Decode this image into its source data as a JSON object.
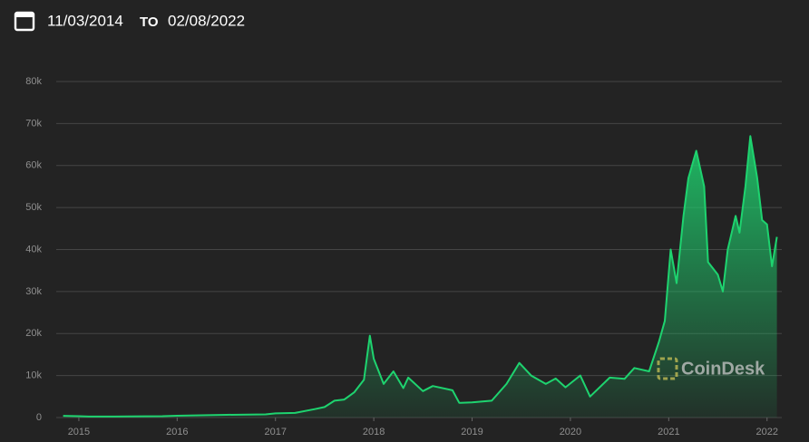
{
  "header": {
    "start_date": "11/03/2014",
    "to": "TO",
    "end_date": "02/08/2022"
  },
  "watermark": "CoinDesk",
  "chart_data": {
    "type": "area",
    "x": [
      2014.84,
      2015.0,
      2015.1,
      2015.5,
      2015.85,
      2016.0,
      2016.5,
      2016.9,
      2017.0,
      2017.2,
      2017.4,
      2017.5,
      2017.6,
      2017.7,
      2017.8,
      2017.9,
      2017.96,
      2018.0,
      2018.1,
      2018.2,
      2018.3,
      2018.35,
      2018.5,
      2018.6,
      2018.8,
      2018.87,
      2019.0,
      2019.2,
      2019.35,
      2019.48,
      2019.6,
      2019.75,
      2019.85,
      2019.95,
      2020.1,
      2020.2,
      2020.4,
      2020.55,
      2020.65,
      2020.8,
      2020.9,
      2020.96,
      2021.02,
      2021.08,
      2021.15,
      2021.2,
      2021.28,
      2021.36,
      2021.4,
      2021.5,
      2021.55,
      2021.6,
      2021.68,
      2021.72,
      2021.78,
      2021.83,
      2021.9,
      2021.95,
      2022.0,
      2022.05,
      2022.1
    ],
    "series": [
      {
        "color": "#1ed36f",
        "values": [
          400,
          320,
          230,
          260,
          330,
          430,
          650,
          750,
          1000,
          1100,
          2000,
          2500,
          4000,
          4300,
          6000,
          9000,
          19500,
          14000,
          8000,
          11000,
          7000,
          9500,
          6300,
          7500,
          6500,
          3500,
          3600,
          4000,
          8000,
          13000,
          10000,
          8000,
          9300,
          7200,
          10000,
          5000,
          9500,
          9200,
          11800,
          11000,
          18000,
          23000,
          40000,
          32000,
          48000,
          57000,
          63500,
          55000,
          37000,
          34000,
          30000,
          40000,
          48000,
          44000,
          55000,
          67000,
          57000,
          47000,
          46000,
          36000,
          43000
        ]
      }
    ],
    "xlim": [
      2014.77,
      2022.15
    ],
    "xticks": [
      2015,
      2016,
      2017,
      2018,
      2019,
      2020,
      2021,
      2022
    ],
    "ylim": [
      0,
      80000
    ],
    "yticks": [
      0,
      {
        "value": 10000,
        "label": "10k"
      },
      {
        "value": 20000,
        "label": "20k"
      },
      {
        "value": 30000,
        "label": "30k"
      },
      {
        "value": 40000,
        "label": "40k"
      },
      {
        "value": 50000,
        "label": "50k"
      },
      {
        "value": 60000,
        "label": "60k"
      },
      {
        "value": 70000,
        "label": "70k"
      },
      {
        "value": 80000,
        "label": "80k"
      }
    ],
    "grid": true
  }
}
